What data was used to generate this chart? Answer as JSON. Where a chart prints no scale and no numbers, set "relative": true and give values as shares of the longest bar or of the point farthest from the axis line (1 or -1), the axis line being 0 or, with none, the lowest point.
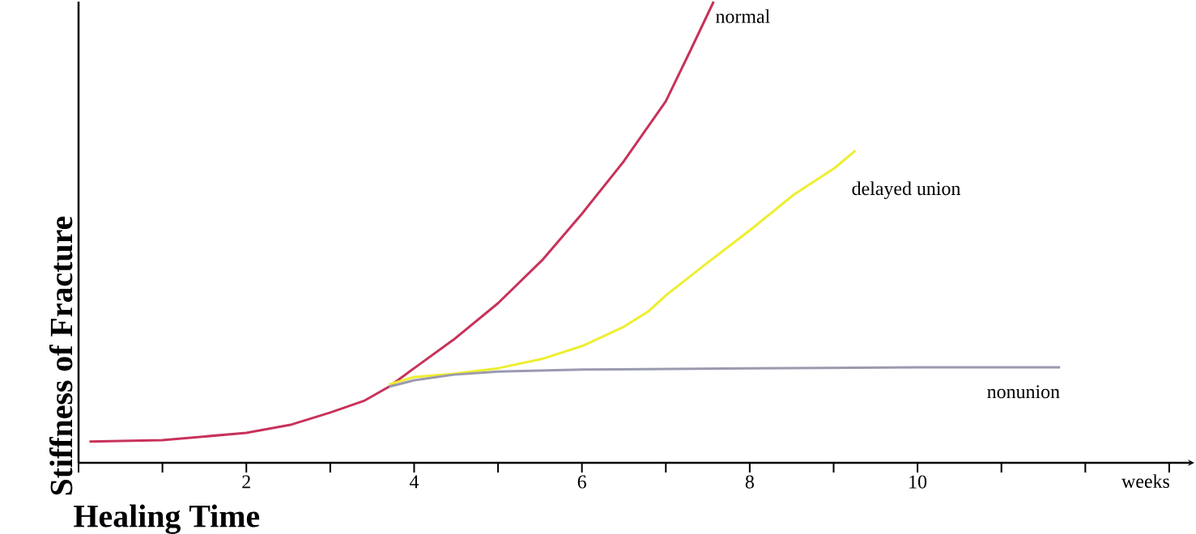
{
  "chart_data": {
    "type": "line",
    "relative": true,
    "xlabel": "Healing Time",
    "ylabel": "Stiffness of Fracture",
    "annotations": [
      "weeks"
    ],
    "xlim": [
      0,
      13.3
    ],
    "xticks": [
      {
        "value": 0,
        "label": null
      },
      {
        "value": 1,
        "label": null
      },
      2,
      {
        "value": 3,
        "label": null
      },
      4,
      {
        "value": 5,
        "label": null
      },
      6,
      {
        "value": 7,
        "label": null
      },
      8,
      {
        "value": 9,
        "label": null
      },
      10,
      {
        "value": 11,
        "label": null
      },
      {
        "value": 12,
        "label": null
      },
      {
        "value": 13,
        "label": null
      }
    ],
    "series": [
      {
        "name": "normal",
        "color": "#c8325a",
        "x": [
          0.13,
          1.0,
          2.0,
          2.54,
          3.0,
          3.41,
          3.7,
          4.0,
          4.47,
          5.0,
          5.54,
          6.0,
          6.5,
          7.0,
          7.28,
          7.57
        ],
        "values": [
          0.046,
          0.049,
          0.065,
          0.083,
          0.109,
          0.135,
          0.165,
          0.205,
          0.267,
          0.346,
          0.442,
          0.54,
          0.654,
          0.784,
          0.889,
          1.0
        ]
      },
      {
        "name": "delayed union",
        "color": "#eeee30",
        "x": [
          3.7,
          4.0,
          4.47,
          5.0,
          5.54,
          6.0,
          6.5,
          6.79,
          7.0,
          7.47,
          8.0,
          8.53,
          9.01,
          9.26
        ],
        "values": [
          0.17,
          0.186,
          0.193,
          0.205,
          0.226,
          0.253,
          0.295,
          0.328,
          0.363,
          0.43,
          0.504,
          0.582,
          0.639,
          0.677
        ]
      },
      {
        "name": "nonunion",
        "color": "#9a9ab0",
        "x": [
          3.7,
          4.0,
          4.47,
          5.0,
          6.0,
          8.0,
          10.0,
          11.7
        ],
        "values": [
          0.165,
          0.179,
          0.191,
          0.198,
          0.202,
          0.205,
          0.207,
          0.207
        ]
      }
    ]
  }
}
